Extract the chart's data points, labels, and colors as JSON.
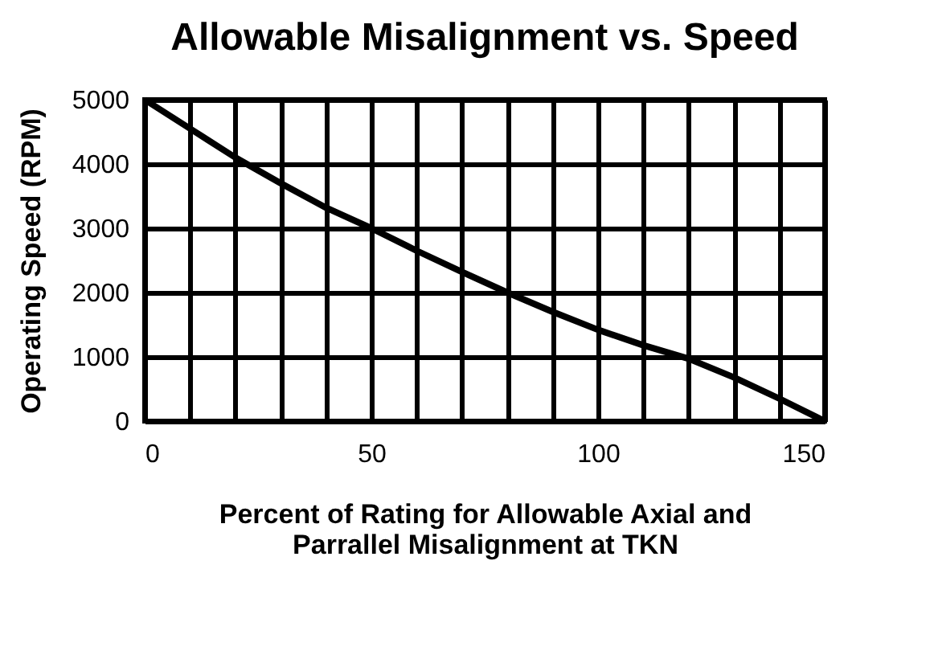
{
  "chart_data": {
    "type": "line",
    "title": "Allowable Misalignment vs. Speed",
    "xlabel": [
      "Percent of Rating for Allowable Axial and",
      "Parrallel Misalignment at TKN"
    ],
    "ylabel": "Operating Speed  (RPM)",
    "x": [
      0,
      10,
      20,
      30,
      40,
      50,
      60,
      70,
      80,
      90,
      100,
      110,
      120,
      130,
      140,
      150
    ],
    "series": [
      {
        "color": "#000000",
        "values": [
          5000,
          4550,
          4100,
          3700,
          3320,
          3000,
          2650,
          2320,
          2000,
          1700,
          1420,
          1180,
          970,
          680,
          350,
          0
        ]
      }
    ],
    "xlim": [
      0,
      150
    ],
    "ylim": [
      0,
      5000
    ],
    "xticks": [
      0,
      {
        "value": 10,
        "label": null
      },
      {
        "value": 20,
        "label": null
      },
      {
        "value": 30,
        "label": null
      },
      {
        "value": 40,
        "label": null
      },
      50,
      {
        "value": 60,
        "label": null
      },
      {
        "value": 70,
        "label": null
      },
      {
        "value": 80,
        "label": null
      },
      {
        "value": 90,
        "label": null
      },
      100,
      {
        "value": 110,
        "label": null
      },
      {
        "value": 120,
        "label": null
      },
      {
        "value": 130,
        "label": null
      },
      {
        "value": 140,
        "label": null
      },
      150
    ],
    "yticks": [
      0,
      1000,
      2000,
      3000,
      4000,
      5000
    ],
    "grid": true,
    "marker": "none",
    "line_style": "solid",
    "legend": false
  }
}
